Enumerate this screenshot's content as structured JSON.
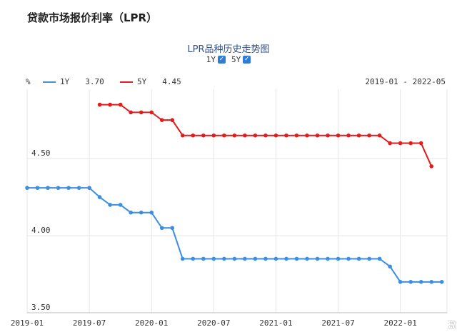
{
  "page": {
    "title": "贷款市场报价利率（LPR）",
    "watermark": "激"
  },
  "chart_data": {
    "type": "line",
    "title": "LPR品种历史走势图",
    "unit_label": "%",
    "date_range": "2019-01 - 2022-05",
    "toggles": [
      {
        "label": "1Y",
        "checked": true
      },
      {
        "label": "5Y",
        "checked": true
      }
    ],
    "legend": [
      {
        "name": "1Y",
        "value": "3.70",
        "color": "#4a90d9"
      },
      {
        "name": "5Y",
        "value": "4.45",
        "color": "#e02020"
      }
    ],
    "x_labels": [
      "2019-01",
      "2019-07",
      "2020-01",
      "2020-07",
      "2021-01",
      "2021-07",
      "2022-01"
    ],
    "x_label_months": [
      0,
      6,
      12,
      18,
      24,
      30,
      36
    ],
    "x_range_months": [
      0,
      40.5
    ],
    "ylim": [
      3.5,
      4.95
    ],
    "y_ticks": [
      {
        "value": 4.5,
        "label": "4.50"
      },
      {
        "value": 4.0,
        "label": "4.00"
      },
      {
        "value": 3.5,
        "label": "3.50"
      }
    ],
    "series": [
      {
        "name": "1Y",
        "color": "#3b8ee0",
        "start_month": 0,
        "values": [
          4.31,
          4.31,
          4.31,
          4.31,
          4.31,
          4.31,
          4.31,
          4.25,
          4.2,
          4.2,
          4.15,
          4.15,
          4.15,
          4.05,
          4.05,
          3.85,
          3.85,
          3.85,
          3.85,
          3.85,
          3.85,
          3.85,
          3.85,
          3.85,
          3.85,
          3.85,
          3.85,
          3.85,
          3.85,
          3.85,
          3.85,
          3.85,
          3.85,
          3.85,
          3.85,
          3.8,
          3.7,
          3.7,
          3.7,
          3.7,
          3.7
        ]
      },
      {
        "name": "5Y",
        "color": "#e01c1c",
        "start_month": 7,
        "values": [
          4.85,
          4.85,
          4.85,
          4.8,
          4.8,
          4.8,
          4.75,
          4.75,
          4.65,
          4.65,
          4.65,
          4.65,
          4.65,
          4.65,
          4.65,
          4.65,
          4.65,
          4.65,
          4.65,
          4.65,
          4.65,
          4.65,
          4.65,
          4.65,
          4.65,
          4.65,
          4.65,
          4.65,
          4.6,
          4.6,
          4.6,
          4.6,
          4.45
        ]
      }
    ]
  }
}
